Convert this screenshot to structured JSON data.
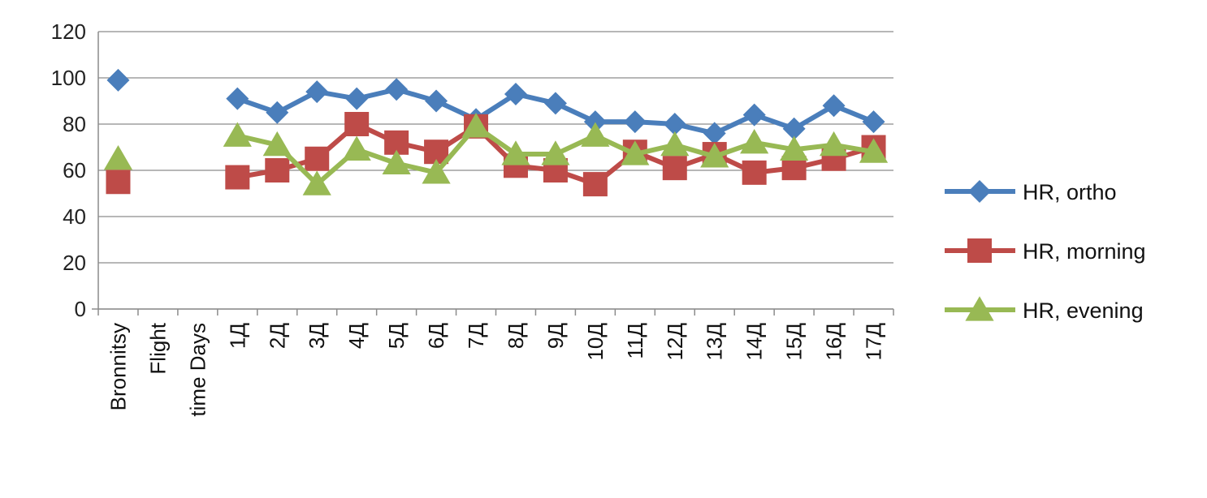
{
  "chart_data": {
    "type": "line",
    "categories": [
      "Bronnitsy",
      "Flight",
      "time Days",
      "1Д",
      "2Д",
      "3Д",
      "4Д",
      "5Д",
      "6Д",
      "7Д",
      "8Д",
      "9Д",
      "10Д",
      "11Д",
      "12Д",
      "13Д",
      "14Д",
      "15Д",
      "16Д",
      "17Д"
    ],
    "ylim": [
      0,
      120
    ],
    "yticks": [
      0,
      20,
      40,
      60,
      80,
      100,
      120
    ],
    "grid": true,
    "legend_position": "right",
    "series": [
      {
        "name": "HR, ortho",
        "color": "#4a7ebb",
        "marker": "diamond",
        "values": [
          99,
          null,
          null,
          91,
          85,
          94,
          91,
          95,
          90,
          82,
          93,
          89,
          81,
          81,
          80,
          76,
          84,
          78,
          88,
          81
        ]
      },
      {
        "name": "HR, morning",
        "color": "#be4b48",
        "marker": "square",
        "values": [
          55,
          null,
          null,
          57,
          60,
          65,
          80,
          72,
          68,
          79,
          62,
          60,
          54,
          68,
          61,
          67,
          59,
          61,
          65,
          70
        ]
      },
      {
        "name": "HR, evening",
        "color": "#98b954",
        "marker": "triangle",
        "values": [
          65,
          null,
          null,
          75,
          71,
          54,
          69,
          63,
          59,
          79,
          67,
          67,
          75,
          67,
          71,
          66,
          72,
          69,
          71,
          68
        ]
      }
    ]
  }
}
